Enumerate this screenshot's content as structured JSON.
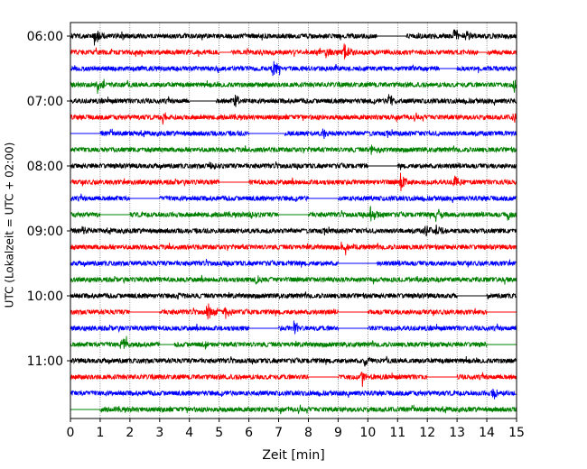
{
  "chart_data": {
    "type": "line",
    "xlabel": "Zeit  [min]",
    "ylabel": "UTC (Lokalzeit = UTC + 02:00)",
    "xlim": [
      0,
      15
    ],
    "x_ticks": [
      "0",
      "1",
      "2",
      "3",
      "4",
      "5",
      "6",
      "7",
      "8",
      "9",
      "10",
      "11",
      "12",
      "13",
      "14",
      "15"
    ],
    "y_tick_labels": [
      "06:00",
      "07:00",
      "08:00",
      "09:00",
      "10:00",
      "11:00"
    ],
    "row_minutes": 15,
    "grid": "vertical dotted",
    "series_colors": [
      "#000000",
      "#ff0000",
      "#0000ff",
      "#008000"
    ],
    "rows": [
      {
        "start": "06:00",
        "color": "#000000",
        "events": [
          {
            "t": 0.8,
            "amp": 1.0
          },
          {
            "t": 12.9,
            "amp": 0.9
          },
          {
            "t": 13.3,
            "amp": 0.6
          }
        ],
        "gaps": [
          [
            10.3,
            11.3
          ]
        ]
      },
      {
        "start": "06:15",
        "color": "#ff0000",
        "events": [
          {
            "t": 8.6,
            "amp": 0.7
          },
          {
            "t": 9.2,
            "amp": 0.9
          }
        ],
        "gaps": [
          [
            5.0,
            5.4
          ],
          [
            13.7,
            14.0
          ]
        ]
      },
      {
        "start": "06:30",
        "color": "#0000ff",
        "events": [
          {
            "t": 6.8,
            "amp": 0.9
          }
        ],
        "gaps": [
          [
            12.4,
            13.0
          ]
        ]
      },
      {
        "start": "06:45",
        "color": "#008000",
        "events": [
          {
            "t": 0.9,
            "amp": 0.9
          },
          {
            "t": 14.9,
            "amp": 0.9
          }
        ],
        "gaps": []
      },
      {
        "start": "07:00",
        "color": "#000000",
        "events": [
          {
            "t": 5.5,
            "amp": 0.6
          },
          {
            "t": 10.7,
            "amp": 1.0
          }
        ],
        "gaps": [
          [
            4.0,
            4.9
          ]
        ]
      },
      {
        "start": "07:15",
        "color": "#ff0000",
        "events": [
          {
            "t": 3.1,
            "amp": 0.7
          },
          {
            "t": 14.9,
            "amp": 0.5
          }
        ],
        "gaps": []
      },
      {
        "start": "07:30",
        "color": "#0000ff",
        "events": [
          {
            "t": 8.5,
            "amp": 0.5
          }
        ],
        "gaps": [
          [
            0.0,
            1.0
          ],
          [
            6.0,
            7.2
          ]
        ]
      },
      {
        "start": "07:45",
        "color": "#008000",
        "events": [
          {
            "t": 10.1,
            "amp": 0.6
          }
        ],
        "gaps": []
      },
      {
        "start": "08:00",
        "color": "#000000",
        "events": [
          {
            "t": 4.7,
            "amp": 0.7
          }
        ],
        "gaps": [
          [
            10.0,
            11.0
          ]
        ]
      },
      {
        "start": "08:15",
        "color": "#ff0000",
        "events": [
          {
            "t": 11.1,
            "amp": 0.9
          },
          {
            "t": 12.9,
            "amp": 0.9
          }
        ],
        "gaps": [
          [
            5.0,
            6.0
          ]
        ]
      },
      {
        "start": "08:30",
        "color": "#0000ff",
        "events": [],
        "gaps": [
          [
            2.0,
            3.0
          ],
          [
            8.0,
            9.0
          ]
        ]
      },
      {
        "start": "08:45",
        "color": "#008000",
        "events": [
          {
            "t": 6.0,
            "amp": 0.6
          },
          {
            "t": 10.1,
            "amp": 0.9
          },
          {
            "t": 12.3,
            "amp": 0.9
          },
          {
            "t": 14.7,
            "amp": 0.7
          }
        ],
        "gaps": [
          [
            1.0,
            2.0
          ],
          [
            7.0,
            8.0
          ]
        ]
      },
      {
        "start": "09:00",
        "color": "#000000",
        "events": [
          {
            "t": 0.4,
            "amp": 0.5
          },
          {
            "t": 11.9,
            "amp": 0.7
          },
          {
            "t": 12.3,
            "amp": 0.7
          }
        ],
        "gaps": []
      },
      {
        "start": "09:15",
        "color": "#ff0000",
        "events": [
          {
            "t": 9.1,
            "amp": 0.6
          }
        ],
        "gaps": []
      },
      {
        "start": "09:30",
        "color": "#0000ff",
        "events": [],
        "gaps": [
          [
            9.0,
            10.3
          ]
        ]
      },
      {
        "start": "09:45",
        "color": "#008000",
        "events": [
          {
            "t": 6.2,
            "amp": 0.6
          },
          {
            "t": 14.6,
            "amp": 0.4
          }
        ],
        "gaps": []
      },
      {
        "start": "10:00",
        "color": "#000000",
        "events": [
          {
            "t": 3.6,
            "amp": 0.5
          }
        ],
        "gaps": [
          [
            13.0,
            14.0
          ]
        ]
      },
      {
        "start": "10:15",
        "color": "#ff0000",
        "events": [
          {
            "t": 4.6,
            "amp": 1.0
          },
          {
            "t": 5.2,
            "amp": 0.7
          }
        ],
        "gaps": [
          [
            2.0,
            3.0
          ],
          [
            9.0,
            10.0
          ],
          [
            14.0,
            15.0
          ]
        ]
      },
      {
        "start": "10:30",
        "color": "#0000ff",
        "events": [
          {
            "t": 7.5,
            "amp": 0.9
          }
        ],
        "gaps": [
          [
            6.0,
            7.0
          ],
          [
            9.0,
            10.0
          ]
        ]
      },
      {
        "start": "10:45",
        "color": "#008000",
        "events": [
          {
            "t": 1.7,
            "amp": 0.9
          },
          {
            "t": 4.5,
            "amp": 0.5
          }
        ],
        "gaps": [
          [
            3.0,
            3.5
          ],
          [
            14.0,
            15.0
          ]
        ]
      },
      {
        "start": "11:00",
        "color": "#000000",
        "events": [
          {
            "t": 9.9,
            "amp": 0.6
          }
        ],
        "gaps": []
      },
      {
        "start": "11:15",
        "color": "#ff0000",
        "events": [
          {
            "t": 9.8,
            "amp": 0.9
          }
        ],
        "gaps": [
          [
            8.0,
            9.0
          ],
          [
            12.0,
            13.0
          ]
        ]
      },
      {
        "start": "11:30",
        "color": "#0000ff",
        "events": [
          {
            "t": 14.2,
            "amp": 0.7
          }
        ],
        "gaps": []
      },
      {
        "start": "11:45",
        "color": "#008000",
        "events": [],
        "gaps": [
          [
            0.0,
            1.0
          ]
        ]
      }
    ]
  }
}
